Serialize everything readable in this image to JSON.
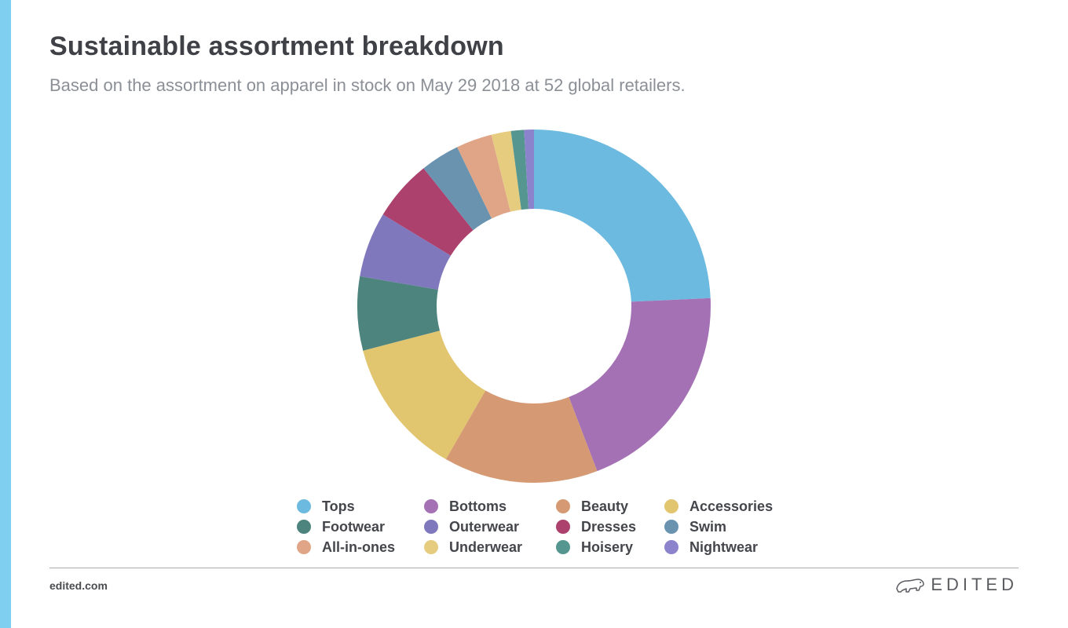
{
  "header": {
    "title": "Sustainable assortment breakdown",
    "subtitle": "Based on the assortment on apparel in stock on May 29 2018 at 52 global retailers."
  },
  "chart_data": {
    "type": "pie",
    "donut": true,
    "title": "Sustainable assortment breakdown",
    "subtitle": "Based on the assortment on apparel in stock on May 29 2018 at 52 global retailers.",
    "legend_position": "bottom",
    "categories": [
      "Tops",
      "Bottoms",
      "Beauty",
      "Accessories",
      "Footwear",
      "Outerwear",
      "Dresses",
      "Swim",
      "All-in-ones",
      "Underwear",
      "Hoisery",
      "Nightwear"
    ],
    "values": [
      24.4,
      20.0,
      14.2,
      12.7,
      6.8,
      6.0,
      5.6,
      3.6,
      3.3,
      1.8,
      1.2,
      0.9
    ],
    "colors": [
      "#6cbadf",
      "#a472b4",
      "#d59a74",
      "#e1c56f",
      "#4d847e",
      "#7f78bd",
      "#ac416d",
      "#6a93b0",
      "#dfa586",
      "#e6cc7f",
      "#569690",
      "#8b83cc"
    ]
  },
  "footer": {
    "url": "edited.com",
    "brand": "EDITED",
    "brand_icon": "polar-bear-icon"
  }
}
